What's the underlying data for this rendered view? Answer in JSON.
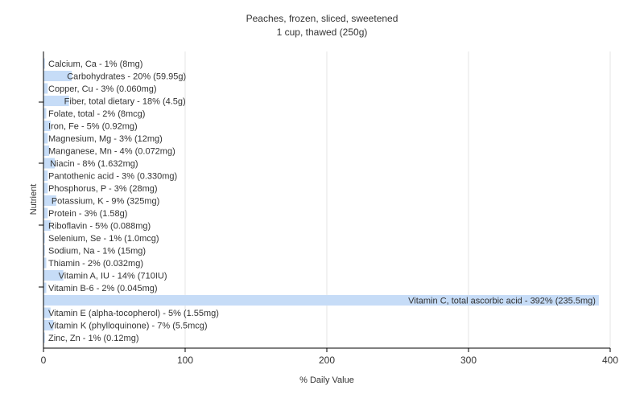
{
  "chart_data": {
    "type": "bar",
    "orientation": "horizontal",
    "title": "Peaches, frozen, sliced, sweetened",
    "subtitle": "1 cup, thawed (250g)",
    "xlabel": "% Daily Value",
    "ylabel": "Nutrient",
    "xlim": [
      0,
      400
    ],
    "xticks": [
      0,
      100,
      200,
      300,
      400
    ],
    "grid": true,
    "bar_color": "#c6dcf7",
    "categories": [
      "Calcium, Ca",
      "Carbohydrates",
      "Copper, Cu",
      "Fiber, total dietary",
      "Folate, total",
      "Iron, Fe",
      "Magnesium, Mg",
      "Manganese, Mn",
      "Niacin",
      "Pantothenic acid",
      "Phosphorus, P",
      "Potassium, K",
      "Protein",
      "Riboflavin",
      "Selenium, Se",
      "Sodium, Na",
      "Thiamin",
      "Vitamin A, IU",
      "Vitamin B-6",
      "Vitamin C, total ascorbic acid",
      "Vitamin E (alpha-tocopherol)",
      "Vitamin K (phylloquinone)",
      "Zinc, Zn"
    ],
    "values": [
      1,
      20,
      3,
      18,
      2,
      5,
      3,
      4,
      8,
      3,
      3,
      9,
      3,
      5,
      1,
      1,
      2,
      14,
      2,
      392,
      5,
      7,
      1
    ],
    "labels": [
      "Calcium, Ca - 1% (8mg)",
      "Carbohydrates - 20% (59.95g)",
      "Copper, Cu - 3% (0.060mg)",
      "Fiber, total dietary - 18% (4.5g)",
      "Folate, total - 2% (8mcg)",
      "Iron, Fe - 5% (0.92mg)",
      "Magnesium, Mg - 3% (12mg)",
      "Manganese, Mn - 4% (0.072mg)",
      "Niacin - 8% (1.632mg)",
      "Pantothenic acid - 3% (0.330mg)",
      "Phosphorus, P - 3% (28mg)",
      "Potassium, K - 9% (325mg)",
      "Protein - 3% (1.58g)",
      "Riboflavin - 5% (0.088mg)",
      "Selenium, Se - 1% (1.0mcg)",
      "Sodium, Na - 1% (15mg)",
      "Thiamin - 2% (0.032mg)",
      "Vitamin A, IU - 14% (710IU)",
      "Vitamin B-6 - 2% (0.045mg)",
      "Vitamin C, total ascorbic acid - 392% (235.5mg)",
      "Vitamin E (alpha-tocopherol) - 5% (1.55mg)",
      "Vitamin K (phylloquinone) - 7% (5.5mcg)",
      "Zinc, Zn - 1% (0.12mg)"
    ]
  }
}
